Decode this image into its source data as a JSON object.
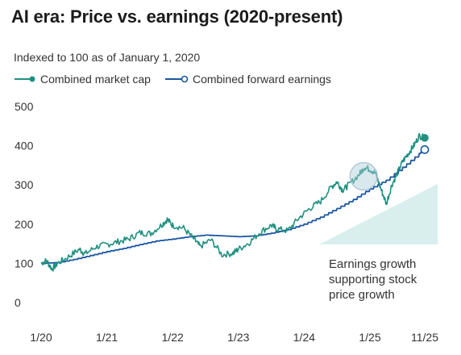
{
  "chart_data": {
    "type": "line",
    "title": "AI era: Price vs. earnings (2020-present)",
    "subtitle": "Indexed to 100 as of January 1, 2020",
    "xlabel": "",
    "ylabel": "",
    "x_ticks": [
      "1/20",
      "1/21",
      "1/22",
      "1/23",
      "1/24",
      "1/25",
      "11/25"
    ],
    "y_ticks": [
      0,
      100,
      200,
      300,
      400,
      500
    ],
    "ylim": [
      0,
      500
    ],
    "grid": false,
    "legend_position": "top-left",
    "colors": {
      "market_cap": "#1f9080",
      "forward_earnings": "#1a56a0",
      "wedge": "#d8efed"
    },
    "annotation": {
      "lines": [
        "Earnings growth",
        "supporting stock",
        "price growth"
      ]
    },
    "series": [
      {
        "name": "Combined market cap",
        "points": [
          [
            "2020-01",
            100
          ],
          [
            "2020-02",
            107
          ],
          [
            "2020-03",
            85
          ],
          [
            "2020-04",
            100
          ],
          [
            "2020-06",
            117
          ],
          [
            "2020-08",
            136
          ],
          [
            "2020-09",
            124
          ],
          [
            "2020-11",
            142
          ],
          [
            "2021-01",
            148
          ],
          [
            "2021-03",
            155
          ],
          [
            "2021-05",
            162
          ],
          [
            "2021-07",
            178
          ],
          [
            "2021-09",
            176
          ],
          [
            "2021-11",
            198
          ],
          [
            "2021-12",
            212
          ],
          [
            "2022-01",
            197
          ],
          [
            "2022-03",
            190
          ],
          [
            "2022-05",
            160
          ],
          [
            "2022-06",
            143
          ],
          [
            "2022-08",
            160
          ],
          [
            "2022-10",
            122
          ],
          [
            "2022-12",
            126
          ],
          [
            "2023-01",
            136
          ],
          [
            "2023-03",
            153
          ],
          [
            "2023-05",
            180
          ],
          [
            "2023-07",
            197
          ],
          [
            "2023-08",
            188
          ],
          [
            "2023-10",
            183
          ],
          [
            "2023-12",
            215
          ],
          [
            "2024-02",
            240
          ],
          [
            "2024-04",
            258
          ],
          [
            "2024-06",
            295
          ],
          [
            "2024-07",
            308
          ],
          [
            "2024-08",
            287
          ],
          [
            "2024-09",
            298
          ],
          [
            "2024-11",
            326
          ],
          [
            "2024-12",
            345
          ],
          [
            "2025-01",
            340
          ],
          [
            "2025-02",
            330
          ],
          [
            "2025-03",
            290
          ],
          [
            "2025-04",
            252
          ],
          [
            "2025-05",
            300
          ],
          [
            "2025-06",
            330
          ],
          [
            "2025-07",
            360
          ],
          [
            "2025-08",
            380
          ],
          [
            "2025-09",
            400
          ],
          [
            "2025-10",
            425
          ],
          [
            "2025-11",
            420
          ]
        ]
      },
      {
        "name": "Combined forward earnings",
        "points": [
          [
            "2020-01",
            100
          ],
          [
            "2020-04",
            102
          ],
          [
            "2020-07",
            110
          ],
          [
            "2020-10",
            120
          ],
          [
            "2021-01",
            130
          ],
          [
            "2021-04",
            138
          ],
          [
            "2021-07",
            148
          ],
          [
            "2021-10",
            157
          ],
          [
            "2022-01",
            162
          ],
          [
            "2022-04",
            168
          ],
          [
            "2022-07",
            172
          ],
          [
            "2022-10",
            170
          ],
          [
            "2023-01",
            168
          ],
          [
            "2023-04",
            170
          ],
          [
            "2023-07",
            177
          ],
          [
            "2023-10",
            186
          ],
          [
            "2024-01",
            200
          ],
          [
            "2024-04",
            218
          ],
          [
            "2024-07",
            240
          ],
          [
            "2024-10",
            263
          ],
          [
            "2025-01",
            290
          ],
          [
            "2025-04",
            312
          ],
          [
            "2025-07",
            345
          ],
          [
            "2025-10",
            380
          ],
          [
            "2025-11",
            390
          ]
        ]
      }
    ]
  }
}
